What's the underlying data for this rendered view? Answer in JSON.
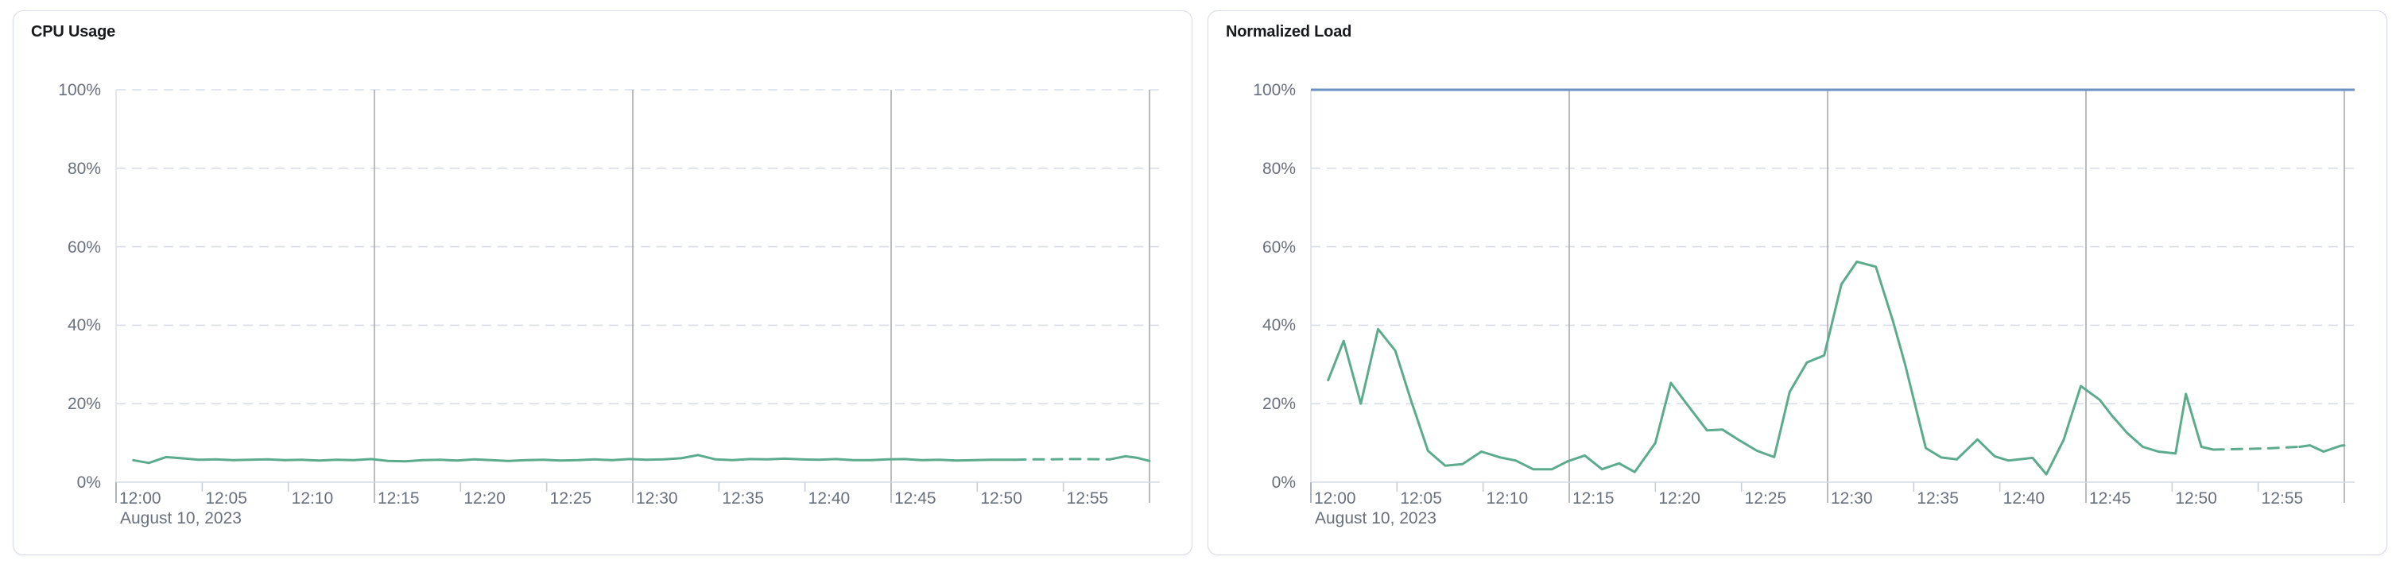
{
  "colors": {
    "series_green": "#5cab8d",
    "threshold_blue": "#6b90c4",
    "grid_dashed": "#d9dde8",
    "grid_major": "#a9abae",
    "grid_left_edge": "#dcdfe8",
    "axis_line": "#d3dae6",
    "tick_minor": "#c8cdd6",
    "tick_major": "#9aa2ad",
    "label_gray": "#69707d",
    "title_dark": "#17191d",
    "card_border": "#d6dbe5",
    "card_bg": "#ffffff",
    "page_bg": "#ffffff"
  },
  "panels": [
    {
      "title": "CPU Usage",
      "date_label": "August 10, 2023"
    },
    {
      "title": "Normalized Load",
      "date_label": "August 10, 2023"
    }
  ],
  "chart_data": [
    {
      "type": "line",
      "title": "CPU Usage",
      "x_axis": {
        "date_label": "August 10, 2023",
        "start": "12:00",
        "end": "13:00",
        "ticks": [
          {
            "label": "12:00",
            "minute": 0
          },
          {
            "label": "12:05",
            "minute": 5
          },
          {
            "label": "12:10",
            "minute": 10
          },
          {
            "label": "12:15",
            "minute": 15
          },
          {
            "label": "12:20",
            "minute": 20
          },
          {
            "label": "12:25",
            "minute": 25
          },
          {
            "label": "12:30",
            "minute": 30
          },
          {
            "label": "12:35",
            "minute": 35
          },
          {
            "label": "12:40",
            "minute": 40
          },
          {
            "label": "12:45",
            "minute": 45
          },
          {
            "label": "12:50",
            "minute": 50
          },
          {
            "label": "12:55",
            "minute": 55
          }
        ],
        "major_gridline_minutes": [
          15,
          30,
          45,
          60
        ],
        "minor_tick_minutes": [
          5,
          10,
          20,
          25,
          35,
          40,
          50,
          55
        ],
        "range_minutes": [
          0,
          60
        ]
      },
      "y_axis": {
        "ticks": [
          {
            "label": "0%",
            "value": 0
          },
          {
            "label": "20%",
            "value": 20
          },
          {
            "label": "40%",
            "value": 40
          },
          {
            "label": "60%",
            "value": 60
          },
          {
            "label": "80%",
            "value": 80
          },
          {
            "label": "100%",
            "value": 100
          }
        ],
        "range": [
          0,
          100
        ],
        "dashed_gridline_values": [
          20,
          40,
          60,
          80,
          100
        ]
      },
      "series": [
        {
          "id": "cpu",
          "color_key": "series_green",
          "stroke_width": 3,
          "segments": [
            {
              "style": "solid",
              "points": [
                [
                  1,
                  5.6
                ],
                [
                  1.9,
                  4.9
                ],
                [
                  2.9,
                  6.4
                ],
                [
                  3.8,
                  6.1
                ],
                [
                  4.8,
                  5.7
                ],
                [
                  5.8,
                  5.8
                ],
                [
                  6.8,
                  5.6
                ],
                [
                  7.8,
                  5.7
                ],
                [
                  8.8,
                  5.8
                ],
                [
                  9.8,
                  5.6
                ],
                [
                  10.8,
                  5.7
                ],
                [
                  11.8,
                  5.5
                ],
                [
                  12.8,
                  5.7
                ],
                [
                  13.8,
                  5.6
                ],
                [
                  14.8,
                  5.9
                ],
                [
                  15.8,
                  5.4
                ],
                [
                  16.8,
                  5.3
                ],
                [
                  17.8,
                  5.6
                ],
                [
                  18.8,
                  5.7
                ],
                [
                  19.8,
                  5.5
                ],
                [
                  20.8,
                  5.8
                ],
                [
                  21.8,
                  5.6
                ],
                [
                  22.8,
                  5.4
                ],
                [
                  23.8,
                  5.6
                ],
                [
                  24.8,
                  5.7
                ],
                [
                  25.8,
                  5.5
                ],
                [
                  26.8,
                  5.6
                ],
                [
                  27.8,
                  5.8
                ],
                [
                  28.8,
                  5.6
                ],
                [
                  29.8,
                  5.9
                ],
                [
                  30.8,
                  5.7
                ],
                [
                  31.8,
                  5.8
                ],
                [
                  32.8,
                  6.1
                ],
                [
                  33.8,
                  6.9
                ],
                [
                  34.8,
                  5.8
                ],
                [
                  35.8,
                  5.6
                ],
                [
                  36.8,
                  5.9
                ],
                [
                  37.8,
                  5.8
                ],
                [
                  38.8,
                  6.0
                ],
                [
                  39.8,
                  5.8
                ],
                [
                  40.8,
                  5.7
                ],
                [
                  41.8,
                  5.9
                ],
                [
                  42.8,
                  5.6
                ],
                [
                  43.8,
                  5.6
                ],
                [
                  44.8,
                  5.8
                ],
                [
                  45.8,
                  5.9
                ],
                [
                  46.8,
                  5.6
                ],
                [
                  47.8,
                  5.7
                ],
                [
                  48.8,
                  5.5
                ],
                [
                  49.8,
                  5.6
                ],
                [
                  50.8,
                  5.7
                ],
                [
                  52.2,
                  5.7
                ]
              ]
            },
            {
              "style": "dashed",
              "points": [
                [
                  52.2,
                  5.7
                ],
                [
                  53.2,
                  5.8
                ],
                [
                  54.2,
                  5.8
                ],
                [
                  55.2,
                  5.9
                ],
                [
                  56.2,
                  5.9
                ],
                [
                  57.7,
                  5.8
                ]
              ]
            },
            {
              "style": "solid",
              "points": [
                [
                  57.7,
                  5.8
                ],
                [
                  58.6,
                  6.6
                ],
                [
                  59.3,
                  6.2
                ],
                [
                  60,
                  5.4
                ]
              ]
            }
          ]
        }
      ]
    },
    {
      "type": "line",
      "title": "Normalized Load",
      "threshold_line": {
        "value": 100,
        "color_key": "threshold_blue",
        "stroke_width": 3
      },
      "x_axis": {
        "date_label": "August 10, 2023",
        "start": "12:00",
        "end": "13:00",
        "ticks": [
          {
            "label": "12:00",
            "minute": 0
          },
          {
            "label": "12:05",
            "minute": 5
          },
          {
            "label": "12:10",
            "minute": 10
          },
          {
            "label": "12:15",
            "minute": 15
          },
          {
            "label": "12:20",
            "minute": 20
          },
          {
            "label": "12:25",
            "minute": 25
          },
          {
            "label": "12:30",
            "minute": 30
          },
          {
            "label": "12:35",
            "minute": 35
          },
          {
            "label": "12:40",
            "minute": 40
          },
          {
            "label": "12:45",
            "minute": 45
          },
          {
            "label": "12:50",
            "minute": 50
          },
          {
            "label": "12:55",
            "minute": 55
          }
        ],
        "major_gridline_minutes": [
          15,
          30,
          45,
          60
        ],
        "minor_tick_minutes": [
          5,
          10,
          20,
          25,
          35,
          40,
          50,
          55
        ],
        "range_minutes": [
          0,
          60
        ]
      },
      "y_axis": {
        "ticks": [
          {
            "label": "0%",
            "value": 0
          },
          {
            "label": "20%",
            "value": 20
          },
          {
            "label": "40%",
            "value": 40
          },
          {
            "label": "60%",
            "value": 60
          },
          {
            "label": "80%",
            "value": 80
          },
          {
            "label": "100%",
            "value": 100
          }
        ],
        "range": [
          0,
          100
        ],
        "dashed_gridline_values": [
          20,
          40,
          60,
          80,
          100
        ]
      },
      "series": [
        {
          "id": "normalized-load",
          "color_key": "series_green",
          "stroke_width": 3,
          "segments": [
            {
              "style": "solid",
              "points": [
                [
                  1,
                  26
                ],
                [
                  1.9,
                  36
                ],
                [
                  2.9,
                  20
                ],
                [
                  3.9,
                  39
                ],
                [
                  4.9,
                  33.5
                ],
                [
                  5.8,
                  21
                ],
                [
                  6.8,
                  8
                ],
                [
                  7.8,
                  4.2
                ],
                [
                  8.8,
                  4.6
                ],
                [
                  9.9,
                  7.8
                ],
                [
                  11,
                  6.3
                ],
                [
                  11.9,
                  5.5
                ],
                [
                  12.9,
                  3.3
                ],
                [
                  14,
                  3.3
                ],
                [
                  14.9,
                  5.3
                ],
                [
                  15.9,
                  6.8
                ],
                [
                  16.9,
                  3.3
                ],
                [
                  17.9,
                  4.8
                ],
                [
                  18.8,
                  2.6
                ],
                [
                  20,
                  10
                ],
                [
                  20.9,
                  25.3
                ],
                [
                  21.9,
                  19.5
                ],
                [
                  23,
                  13.2
                ],
                [
                  23.9,
                  13.4
                ],
                [
                  24.9,
                  10.6
                ],
                [
                  25.9,
                  8
                ],
                [
                  26.9,
                  6.4
                ],
                [
                  27.8,
                  23
                ],
                [
                  28.8,
                  30.5
                ],
                [
                  29.8,
                  32.3
                ],
                [
                  30.8,
                  50.4
                ],
                [
                  31.7,
                  56.2
                ],
                [
                  32.8,
                  54.9
                ],
                [
                  33.8,
                  41
                ],
                [
                  34.5,
                  30
                ],
                [
                  35.7,
                  8.7
                ],
                [
                  36.6,
                  6.3
                ],
                [
                  37.5,
                  5.8
                ],
                [
                  38.7,
                  10.9
                ],
                [
                  39.7,
                  6.6
                ],
                [
                  40.5,
                  5.5
                ],
                [
                  41.9,
                  6.2
                ],
                [
                  42.7,
                  2.0
                ],
                [
                  43.7,
                  10.7
                ],
                [
                  44.7,
                  24.5
                ],
                [
                  45.8,
                  21
                ],
                [
                  46.5,
                  17
                ],
                [
                  47.4,
                  12.5
                ],
                [
                  48.3,
                  9
                ],
                [
                  49.2,
                  7.8
                ],
                [
                  50.2,
                  7.3
                ],
                [
                  50.8,
                  22.5
                ],
                [
                  51.7,
                  9
                ],
                [
                  52.4,
                  8.3
                ]
              ]
            },
            {
              "style": "dashed",
              "points": [
                [
                  52.4,
                  8.3
                ],
                [
                  53.4,
                  8.4
                ],
                [
                  54.4,
                  8.5
                ],
                [
                  55.4,
                  8.6
                ],
                [
                  56.4,
                  8.8
                ],
                [
                  57.4,
                  9.0
                ]
              ]
            },
            {
              "style": "solid",
              "points": [
                [
                  57.4,
                  9.0
                ],
                [
                  58.0,
                  9.4
                ],
                [
                  58.8,
                  7.8
                ],
                [
                  59.8,
                  9.3
                ],
                [
                  60,
                  9.4
                ]
              ]
            }
          ]
        }
      ]
    }
  ]
}
